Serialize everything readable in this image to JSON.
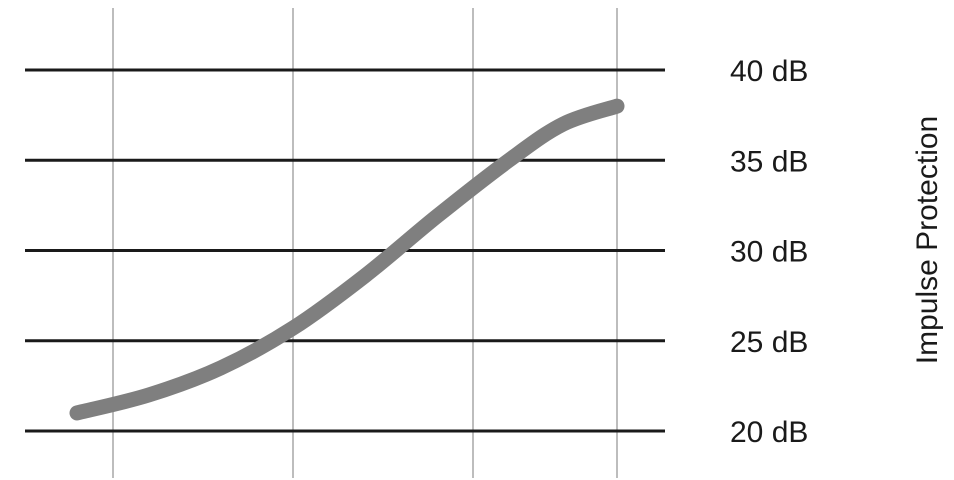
{
  "chart_data": {
    "type": "line",
    "ylabel": "Impulse Protection",
    "yticks": [
      {
        "value": 20,
        "label": "20 dB"
      },
      {
        "value": 25,
        "label": "25 dB"
      },
      {
        "value": 30,
        "label": "30 dB"
      },
      {
        "value": 35,
        "label": "35 dB"
      },
      {
        "value": 40,
        "label": "40 dB"
      }
    ],
    "ylim": [
      20,
      40
    ],
    "xlim": [
      0,
      3
    ],
    "x_gridlines": [
      0,
      1,
      2,
      2.8
    ],
    "series": [
      {
        "color": "#7f7f7f",
        "points": [
          {
            "x": -0.2,
            "y": 21.0
          },
          {
            "x": 0.2,
            "y": 22.0
          },
          {
            "x": 0.6,
            "y": 23.5
          },
          {
            "x": 1.0,
            "y": 25.7
          },
          {
            "x": 1.4,
            "y": 28.6
          },
          {
            "x": 1.8,
            "y": 31.9
          },
          {
            "x": 2.2,
            "y": 35.0
          },
          {
            "x": 2.5,
            "y": 37.0
          },
          {
            "x": 2.8,
            "y": 38.0
          }
        ]
      }
    ],
    "grid": true
  }
}
